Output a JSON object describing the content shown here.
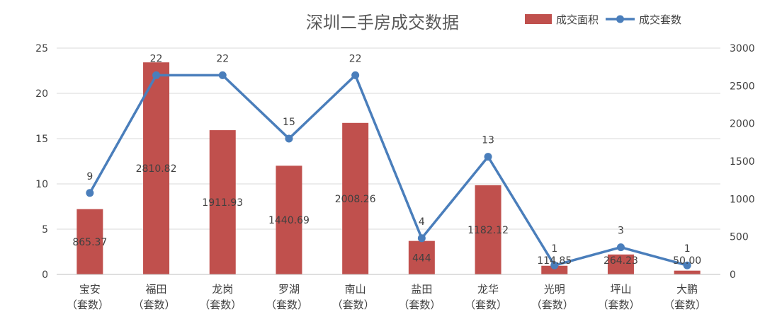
{
  "chart_data": {
    "type": "bar",
    "title": "深圳二手房成交数据",
    "categories": [
      "宝安",
      "福田",
      "龙岗",
      "罗湖",
      "南山",
      "盐田",
      "龙华",
      "光明",
      "坪山",
      "大鹏"
    ],
    "category_suffix": "（套数）",
    "series": [
      {
        "name": "成交面积",
        "type": "bar",
        "axis": "right",
        "color": "#C0504D",
        "values": [
          865.37,
          2810.82,
          1911.93,
          1440.69,
          2008.26,
          444,
          1182.12,
          114.85,
          264.23,
          50.0
        ],
        "labels": [
          "865.37",
          "2810.82",
          "1911.93",
          "1440.69",
          "2008.26",
          "444",
          "1182.12",
          "114.85",
          "264.23",
          "50.00"
        ]
      },
      {
        "name": "成交套数",
        "type": "line",
        "axis": "left",
        "color": "#4A7EBB",
        "values": [
          9,
          22,
          22,
          15,
          22,
          4,
          13,
          1,
          3,
          1
        ],
        "labels": [
          "9",
          "22",
          "22",
          "15",
          "22",
          "4",
          "13",
          "1",
          "3",
          "1"
        ]
      }
    ],
    "y_left": {
      "min": 0,
      "max": 25,
      "ticks": [
        0,
        5,
        10,
        15,
        20,
        25
      ]
    },
    "y_right": {
      "min": 0,
      "max": 3000,
      "ticks": [
        0,
        500,
        1000,
        1500,
        2000,
        2500,
        3000
      ]
    },
    "grid": true,
    "legend_position": "top-right"
  }
}
